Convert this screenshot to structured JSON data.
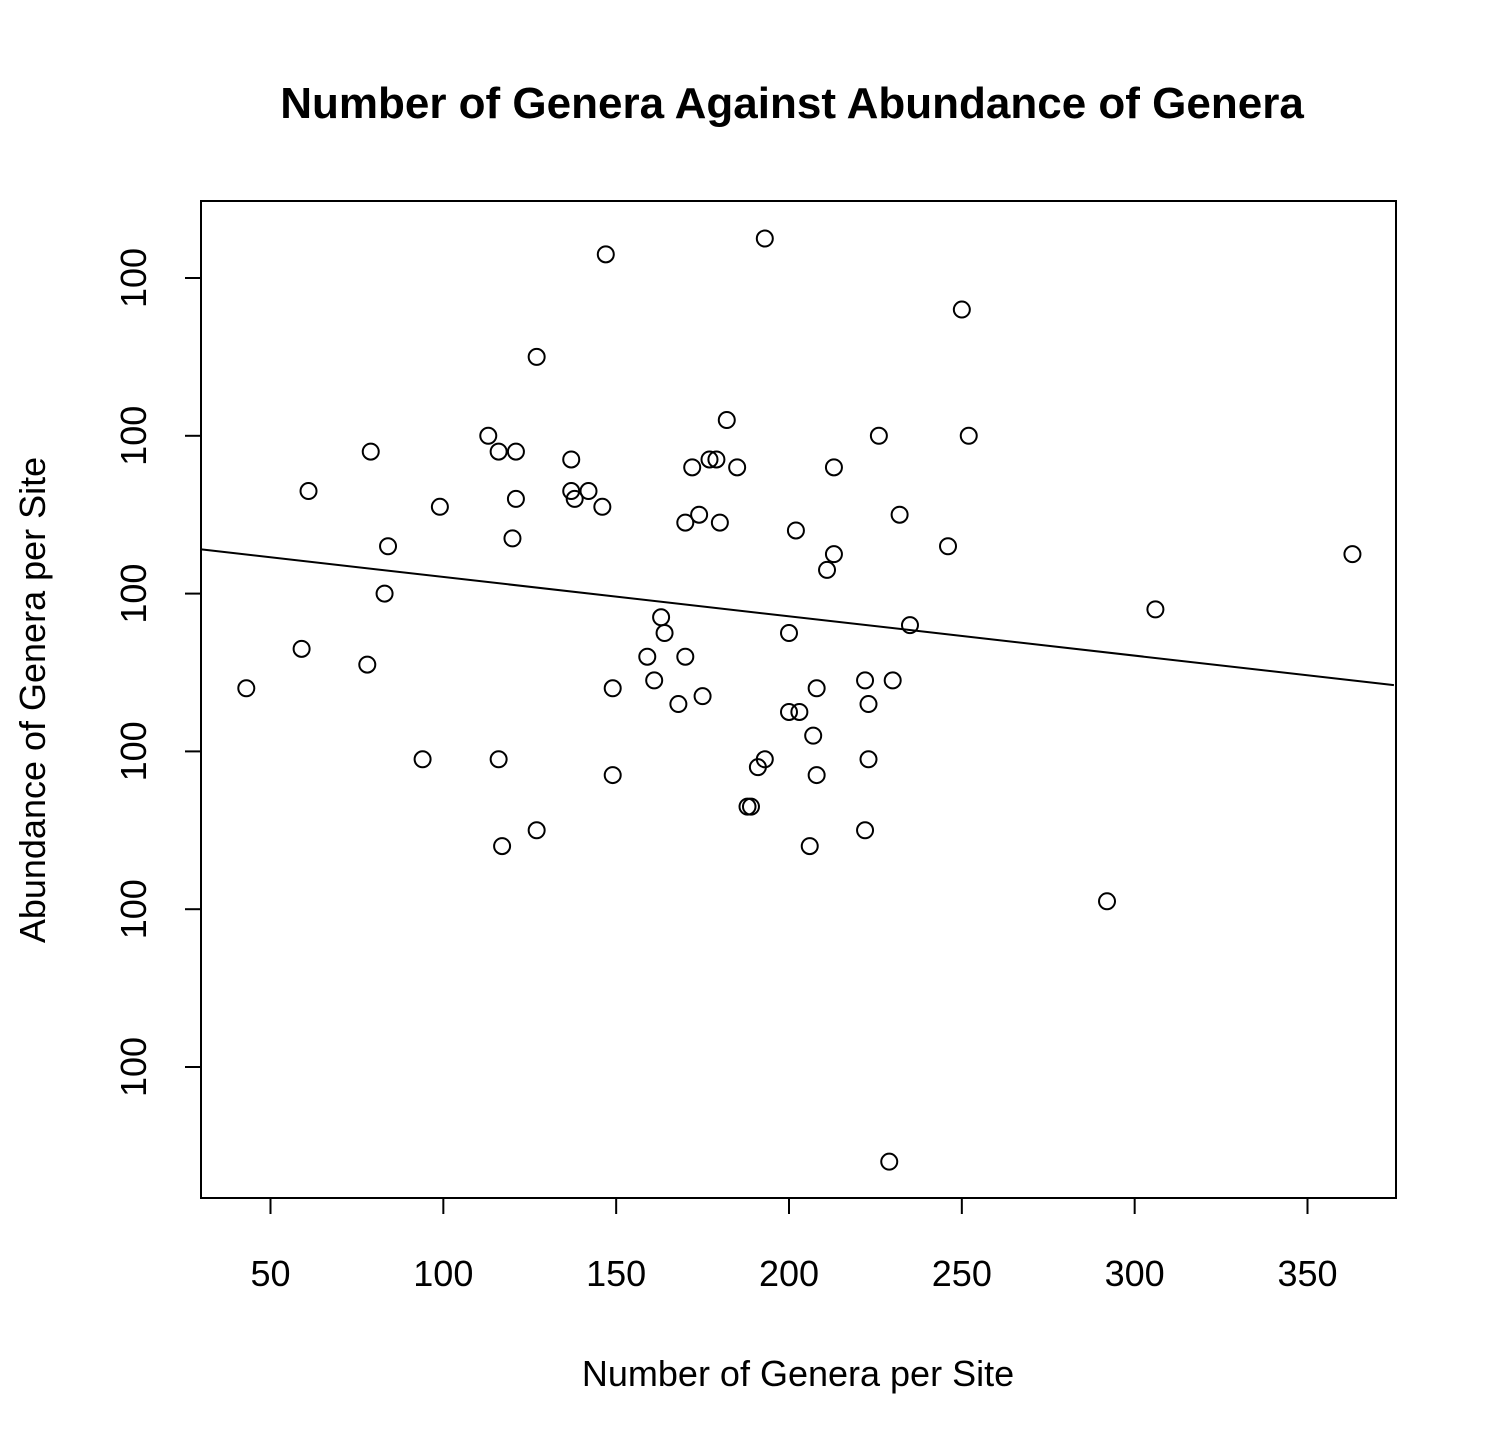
{
  "chart_data": {
    "type": "scatter",
    "title": "Number of Genera  Against Abundance of Genera",
    "xlabel": "Number of Genera per Site",
    "ylabel": "Abundance of Genera per Site",
    "xlim": [
      30,
      375
    ],
    "ylim": [
      -5.8,
      0.55
    ],
    "x_ticks": [
      50,
      100,
      150,
      200,
      250,
      300,
      350
    ],
    "x_tick_labels": [
      "50",
      "100",
      "150",
      "200",
      "250",
      "300",
      "350"
    ],
    "y_ticks": [
      0,
      -1,
      -2,
      -3,
      -4,
      -5
    ],
    "y_tick_labels": [
      "100",
      "100",
      "100",
      "100",
      "100",
      "100"
    ],
    "y_note": "y tick labels all print 100; y values expressed in tick units (0 = top tick, -5 = bottom tick)",
    "grid": false,
    "legend": "none",
    "points": [
      {
        "x": 43,
        "y": -2.6
      },
      {
        "x": 59,
        "y": -2.35
      },
      {
        "x": 61,
        "y": -1.35
      },
      {
        "x": 78,
        "y": -2.45
      },
      {
        "x": 79,
        "y": -1.1
      },
      {
        "x": 83,
        "y": -2.0
      },
      {
        "x": 84,
        "y": -1.7
      },
      {
        "x": 94,
        "y": -3.05
      },
      {
        "x": 99,
        "y": -1.45
      },
      {
        "x": 113,
        "y": -1.0
      },
      {
        "x": 116,
        "y": -1.1
      },
      {
        "x": 116,
        "y": -3.05
      },
      {
        "x": 117,
        "y": -3.6
      },
      {
        "x": 120,
        "y": -1.65
      },
      {
        "x": 121,
        "y": -1.1
      },
      {
        "x": 121,
        "y": -1.4
      },
      {
        "x": 127,
        "y": -0.5
      },
      {
        "x": 127,
        "y": -3.5
      },
      {
        "x": 137,
        "y": -1.15
      },
      {
        "x": 137,
        "y": -1.35
      },
      {
        "x": 138,
        "y": -1.4
      },
      {
        "x": 142,
        "y": -1.35
      },
      {
        "x": 146,
        "y": -1.45
      },
      {
        "x": 147,
        "y": 0.15
      },
      {
        "x": 149,
        "y": -2.6
      },
      {
        "x": 149,
        "y": -3.15
      },
      {
        "x": 159,
        "y": -2.4
      },
      {
        "x": 161,
        "y": -2.55
      },
      {
        "x": 163,
        "y": -2.15
      },
      {
        "x": 164,
        "y": -2.25
      },
      {
        "x": 168,
        "y": -2.7
      },
      {
        "x": 170,
        "y": -1.55
      },
      {
        "x": 170,
        "y": -2.4
      },
      {
        "x": 172,
        "y": -1.2
      },
      {
        "x": 174,
        "y": -1.5
      },
      {
        "x": 175,
        "y": -2.65
      },
      {
        "x": 177,
        "y": -1.15
      },
      {
        "x": 179,
        "y": -1.15
      },
      {
        "x": 180,
        "y": -1.55
      },
      {
        "x": 182,
        "y": -0.9
      },
      {
        "x": 185,
        "y": -1.2
      },
      {
        "x": 188,
        "y": -3.35
      },
      {
        "x": 189,
        "y": -3.35
      },
      {
        "x": 191,
        "y": -3.1
      },
      {
        "x": 193,
        "y": 0.25
      },
      {
        "x": 193,
        "y": -3.05
      },
      {
        "x": 200,
        "y": -2.25
      },
      {
        "x": 200,
        "y": -2.75
      },
      {
        "x": 202,
        "y": -1.6
      },
      {
        "x": 203,
        "y": -2.75
      },
      {
        "x": 206,
        "y": -3.6
      },
      {
        "x": 207,
        "y": -2.9
      },
      {
        "x": 208,
        "y": -2.6
      },
      {
        "x": 208,
        "y": -3.15
      },
      {
        "x": 211,
        "y": -1.85
      },
      {
        "x": 213,
        "y": -1.2
      },
      {
        "x": 213,
        "y": -1.75
      },
      {
        "x": 222,
        "y": -2.55
      },
      {
        "x": 222,
        "y": -3.5
      },
      {
        "x": 223,
        "y": -2.7
      },
      {
        "x": 223,
        "y": -3.05
      },
      {
        "x": 226,
        "y": -1.0
      },
      {
        "x": 229,
        "y": -5.6
      },
      {
        "x": 230,
        "y": -2.55
      },
      {
        "x": 232,
        "y": -1.5
      },
      {
        "x": 235,
        "y": -2.2
      },
      {
        "x": 246,
        "y": -1.7
      },
      {
        "x": 250,
        "y": -0.2
      },
      {
        "x": 252,
        "y": -1.0
      },
      {
        "x": 292,
        "y": -3.95
      },
      {
        "x": 306,
        "y": -2.1
      },
      {
        "x": 363,
        "y": -1.75
      }
    ],
    "fit_line": {
      "x": [
        30,
        375
      ],
      "y": [
        -1.72,
        -2.58
      ]
    }
  }
}
